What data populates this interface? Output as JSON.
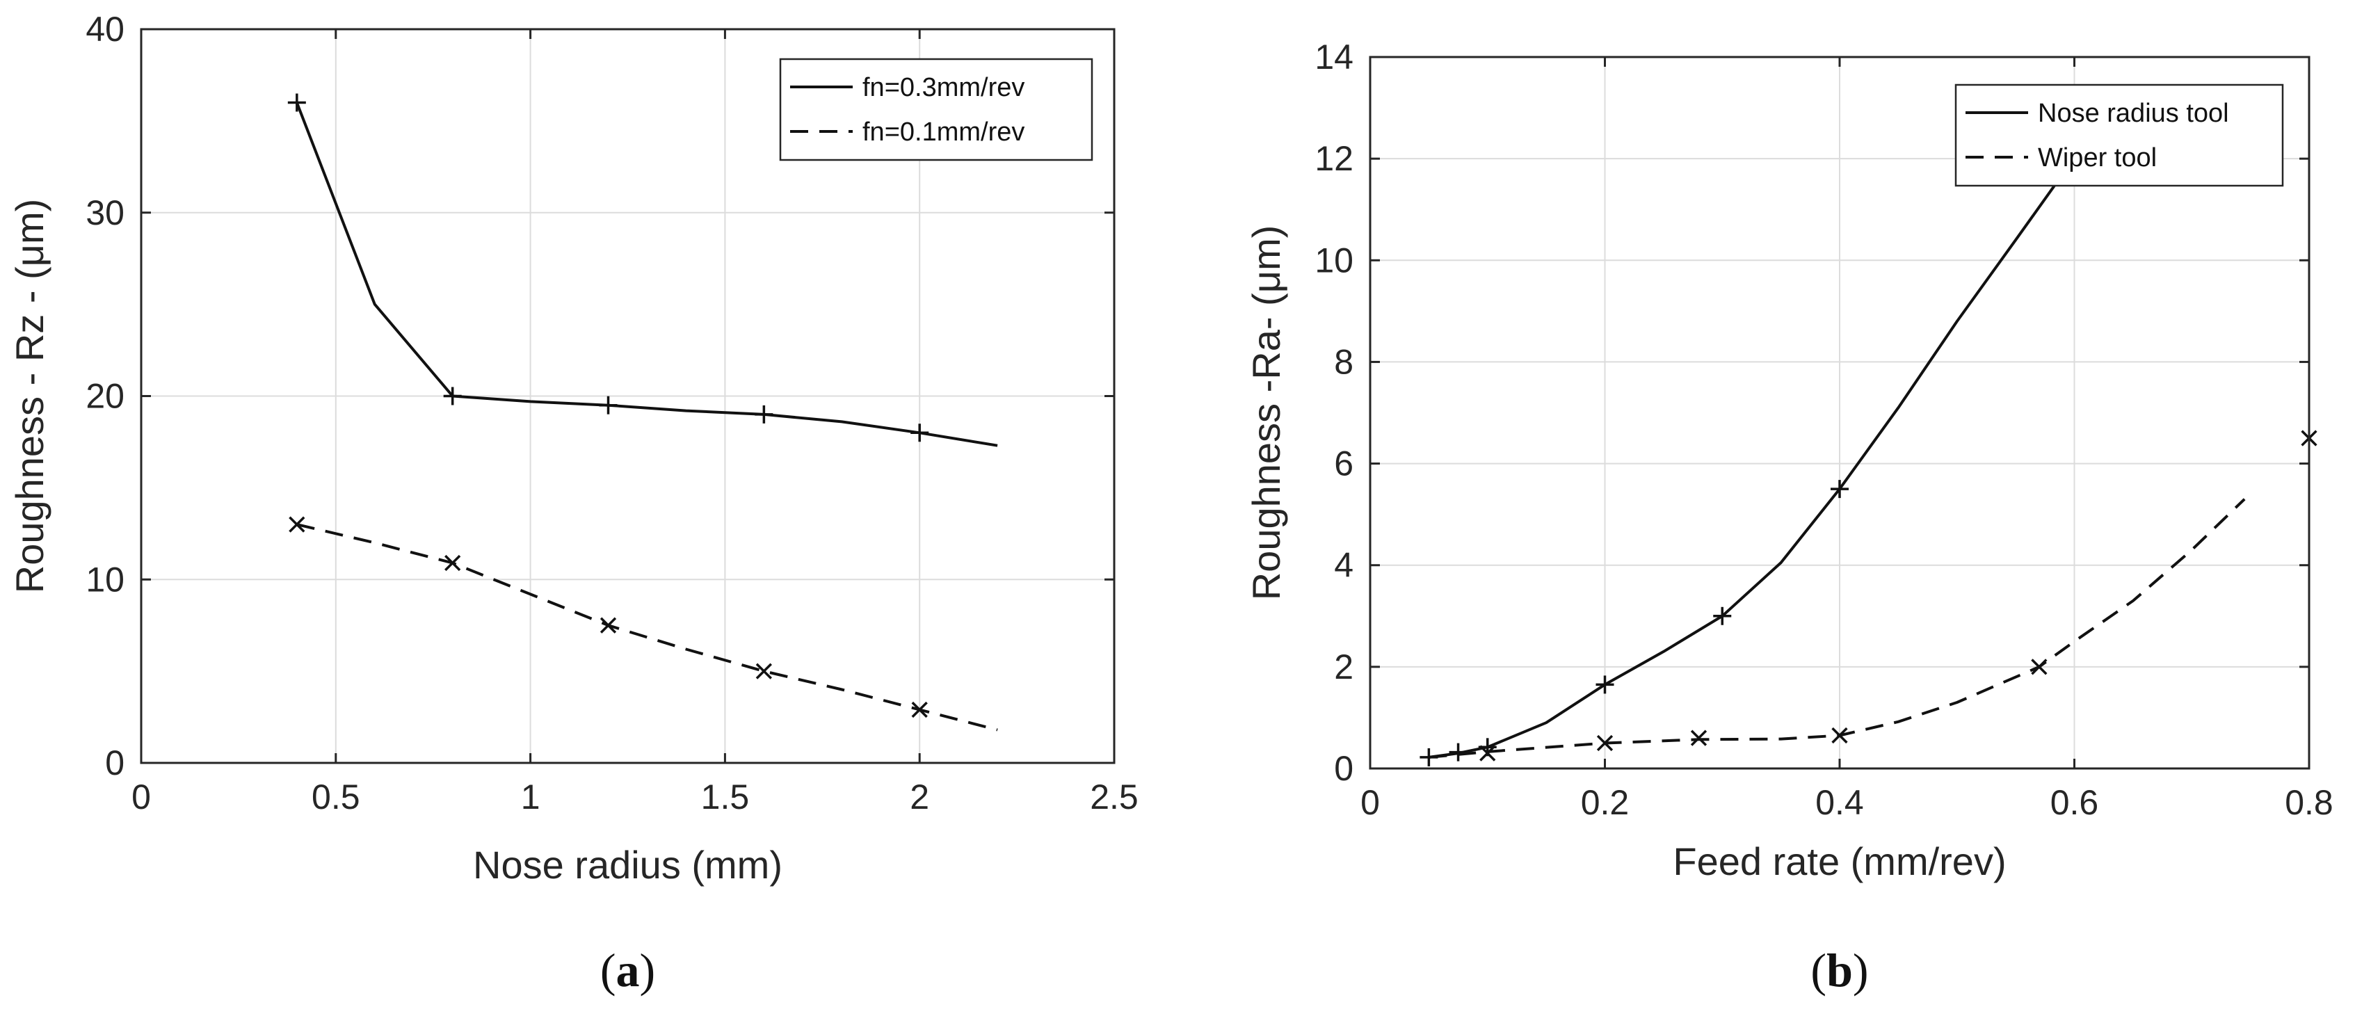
{
  "chart_data": [
    {
      "id": "a",
      "type": "line",
      "caption": "a",
      "title": "",
      "xlabel": "Nose radius (mm)",
      "ylabel": "Roughness - Rz - (μm)",
      "xlim": [
        0,
        2.5
      ],
      "ylim": [
        0,
        40
      ],
      "xticks": [
        0,
        0.5,
        1,
        1.5,
        2,
        2.5
      ],
      "xtick_labels": [
        "0",
        "0.5",
        "1",
        "1.5",
        "2",
        "2.5"
      ],
      "yticks": [
        0,
        10,
        20,
        30,
        40
      ],
      "ytick_labels": [
        "0",
        "10",
        "20",
        "30",
        "40"
      ],
      "grid": true,
      "legend_position": "top-right",
      "series": [
        {
          "name": "fn=0.3mm/rev",
          "style": "solid",
          "marker": "+",
          "curve": [
            [
              0.4,
              36
            ],
            [
              0.6,
              25
            ],
            [
              0.8,
              20
            ],
            [
              1.0,
              19.7
            ],
            [
              1.2,
              19.5
            ],
            [
              1.4,
              19.2
            ],
            [
              1.6,
              19
            ],
            [
              1.8,
              18.6
            ],
            [
              2.0,
              18
            ],
            [
              2.2,
              17.3
            ]
          ],
          "markers": [
            [
              0.4,
              36
            ],
            [
              0.8,
              20
            ],
            [
              1.2,
              19.5
            ],
            [
              1.6,
              19
            ],
            [
              2.0,
              18
            ]
          ]
        },
        {
          "name": "fn=0.1mm/rev",
          "style": "dashed",
          "marker": "x",
          "curve": [
            [
              0.4,
              13
            ],
            [
              0.6,
              12
            ],
            [
              0.8,
              10.9
            ],
            [
              1.0,
              9.2
            ],
            [
              1.2,
              7.5
            ],
            [
              1.4,
              6.2
            ],
            [
              1.6,
              5
            ],
            [
              1.8,
              4
            ],
            [
              2.0,
              2.9
            ],
            [
              2.2,
              1.8
            ]
          ],
          "markers": [
            [
              0.4,
              13
            ],
            [
              0.8,
              10.9
            ],
            [
              1.2,
              7.5
            ],
            [
              1.6,
              5
            ],
            [
              2.0,
              2.9
            ]
          ]
        }
      ]
    },
    {
      "id": "b",
      "type": "line",
      "caption": "b",
      "title": "",
      "xlabel": "Feed rate (mm/rev)",
      "ylabel": "Roughness -Ra- (μm)",
      "xlim": [
        0,
        0.8
      ],
      "ylim": [
        0,
        14
      ],
      "xticks": [
        0,
        0.2,
        0.4,
        0.6,
        0.8
      ],
      "xtick_labels": [
        "0",
        "0.2",
        "0.4",
        "0.6",
        "0.8"
      ],
      "yticks": [
        0,
        2,
        4,
        6,
        8,
        10,
        12,
        14
      ],
      "ytick_labels": [
        "0",
        "2",
        "4",
        "6",
        "8",
        "10",
        "12",
        "14"
      ],
      "grid": true,
      "legend_position": "top-right",
      "series": [
        {
          "name": "Nose radius tool",
          "style": "solid",
          "marker": "+",
          "curve": [
            [
              0.05,
              0.22
            ],
            [
              0.075,
              0.3
            ],
            [
              0.1,
              0.42
            ],
            [
              0.15,
              0.9
            ],
            [
              0.2,
              1.65
            ],
            [
              0.25,
              2.3
            ],
            [
              0.3,
              3.0
            ],
            [
              0.35,
              4.05
            ],
            [
              0.4,
              5.5
            ],
            [
              0.45,
              7.1
            ],
            [
              0.5,
              8.8
            ],
            [
              0.55,
              10.4
            ],
            [
              0.584,
              11.5
            ]
          ],
          "markers": [
            [
              0.05,
              0.22
            ],
            [
              0.075,
              0.32
            ],
            [
              0.1,
              0.42
            ],
            [
              0.2,
              1.65
            ],
            [
              0.3,
              3.0
            ],
            [
              0.4,
              5.5
            ]
          ]
        },
        {
          "name": "Wiper tool",
          "style": "dashed",
          "marker": "x",
          "curve": [
            [
              0.05,
              0.22
            ],
            [
              0.1,
              0.33
            ],
            [
              0.2,
              0.5
            ],
            [
              0.28,
              0.57
            ],
            [
              0.35,
              0.58
            ],
            [
              0.4,
              0.65
            ],
            [
              0.45,
              0.92
            ],
            [
              0.5,
              1.3
            ],
            [
              0.57,
              2.0
            ],
            [
              0.6,
              2.5
            ],
            [
              0.65,
              3.3
            ],
            [
              0.7,
              4.3
            ],
            [
              0.745,
              5.3
            ]
          ],
          "markers": [
            [
              0.1,
              0.3
            ],
            [
              0.2,
              0.5
            ],
            [
              0.28,
              0.6
            ],
            [
              0.4,
              0.65
            ],
            [
              0.57,
              2.0
            ],
            [
              0.8,
              6.5
            ]
          ]
        }
      ]
    }
  ]
}
